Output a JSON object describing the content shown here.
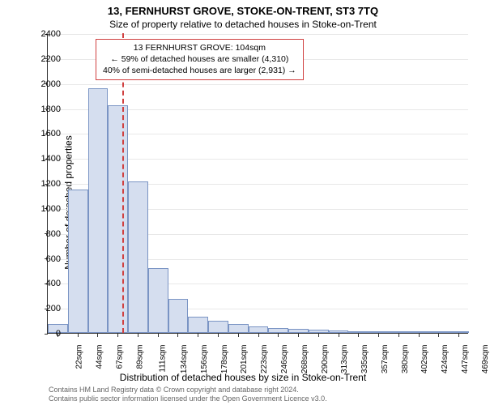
{
  "title": "13, FERNHURST GROVE, STOKE-ON-TRENT, ST3 7TQ",
  "subtitle": "Size of property relative to detached houses in Stoke-on-Trent",
  "y_axis_title": "Number of detached properties",
  "x_axis_title": "Distribution of detached houses by size in Stoke-on-Trent",
  "info": {
    "line1": "13 FERNHURST GROVE: 104sqm",
    "line2": "← 59% of detached houses are smaller (4,310)",
    "line3": "40% of semi-detached houses are larger (2,931) →"
  },
  "footer": {
    "line1": "Contains HM Land Registry data © Crown copyright and database right 2024.",
    "line2": "Contains public sector information licensed under the Open Government Licence v3.0."
  },
  "chart": {
    "type": "histogram",
    "ylim": [
      0,
      2400
    ],
    "ytick_step": 200,
    "bar_fill_color": "#d5deef",
    "bar_border_color": "#7a94c4",
    "grid_color": "#e8e8e8",
    "marker_color": "#d04040",
    "marker_x_index": 3.7,
    "x_labels": [
      "22sqm",
      "44sqm",
      "67sqm",
      "89sqm",
      "111sqm",
      "134sqm",
      "156sqm",
      "178sqm",
      "201sqm",
      "223sqm",
      "246sqm",
      "268sqm",
      "290sqm",
      "313sqm",
      "335sqm",
      "357sqm",
      "380sqm",
      "402sqm",
      "424sqm",
      "447sqm",
      "469sqm"
    ],
    "values": [
      70,
      1150,
      1960,
      1820,
      1210,
      520,
      275,
      130,
      100,
      70,
      50,
      40,
      30,
      25,
      20,
      8,
      10,
      5,
      10,
      5,
      5
    ]
  }
}
